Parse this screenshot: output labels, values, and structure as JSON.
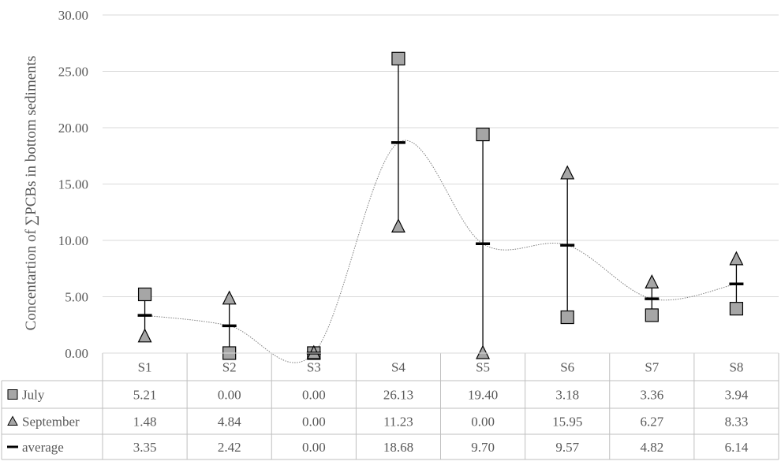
{
  "chart_data": {
    "type": "line",
    "title": "",
    "ylabel": "Concentartion of ∑PCBs in bottom sediments",
    "xlabel": "",
    "ylim": [
      0,
      30
    ],
    "yticks": [
      "0.00",
      "5.00",
      "10.00",
      "15.00",
      "20.00",
      "25.00",
      "30.00"
    ],
    "categories": [
      "S1",
      "S2",
      "S3",
      "S4",
      "S5",
      "S6",
      "S7",
      "S8"
    ],
    "series": [
      {
        "name": "July",
        "marker": "square",
        "color": "#a6a6a6",
        "values": [
          5.21,
          0.0,
          0.0,
          26.13,
          19.4,
          3.18,
          3.36,
          3.94
        ],
        "labels": [
          "5.21",
          "0.00",
          "0.00",
          "26.13",
          "19.40",
          "3.18",
          "3.36",
          "3.94"
        ]
      },
      {
        "name": "September",
        "marker": "triangle",
        "color": "#a6a6a6",
        "values": [
          1.48,
          4.84,
          0.0,
          11.23,
          0.0,
          15.95,
          6.27,
          8.33
        ],
        "labels": [
          "1.48",
          "4.84",
          "0.00",
          "11.23",
          "0.00",
          "15.95",
          "6.27",
          "8.33"
        ]
      },
      {
        "name": "average",
        "marker": "dash",
        "color": "#000000",
        "values": [
          3.35,
          2.42,
          0.0,
          18.68,
          9.7,
          9.57,
          4.82,
          6.14
        ],
        "labels": [
          "3.35",
          "2.42",
          "0.00",
          "18.68",
          "9.70",
          "9.57",
          "4.82",
          "6.14"
        ]
      }
    ],
    "high_low_lines": true,
    "trendline": "smoothed line through averages (dotted)",
    "grid": true,
    "legend": "data table"
  }
}
